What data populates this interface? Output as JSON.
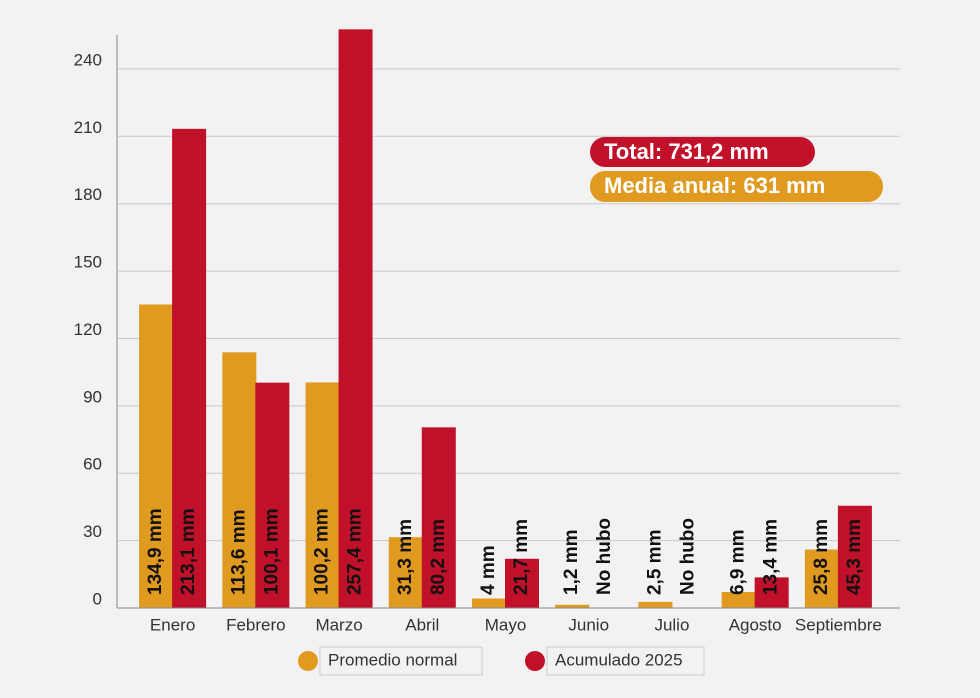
{
  "chart_data": {
    "type": "bar",
    "categories": [
      "Enero",
      "Febrero",
      "Marzo",
      "Abril",
      "Mayo",
      "Junio",
      "Julio",
      "Agosto",
      "Septiembre"
    ],
    "series": [
      {
        "name": "Promedio normal",
        "color": "#e09a1f",
        "values": [
          134.9,
          113.6,
          100.2,
          31.3,
          4,
          1.2,
          2.5,
          6.9,
          25.8
        ],
        "value_labels": [
          "134,9 mm",
          "113,6 mm",
          "100,2 mm",
          "31,3 mm",
          "4 mm",
          "1,2 mm",
          "2,5 mm",
          "6,9 mm",
          "25,8 mm"
        ]
      },
      {
        "name": "Acumulado 2025",
        "color": "#c0102a",
        "values": [
          213.1,
          100.1,
          257.4,
          80.2,
          21.7,
          0,
          0,
          13.4,
          45.3
        ],
        "value_labels": [
          "213,1 mm",
          "100,1 mm",
          "257,4 mm",
          "80,2 mm",
          "21,7 mm",
          "No hubo",
          "No hubo",
          "13,4 mm",
          "45,3 mm"
        ]
      }
    ],
    "annotations": [
      "Total: 731,2 mm",
      "Media anual: 631 mm"
    ],
    "ylim": [
      0,
      260
    ],
    "yticks": [
      0,
      30,
      60,
      90,
      120,
      150,
      180,
      210,
      240
    ],
    "grid": true
  }
}
